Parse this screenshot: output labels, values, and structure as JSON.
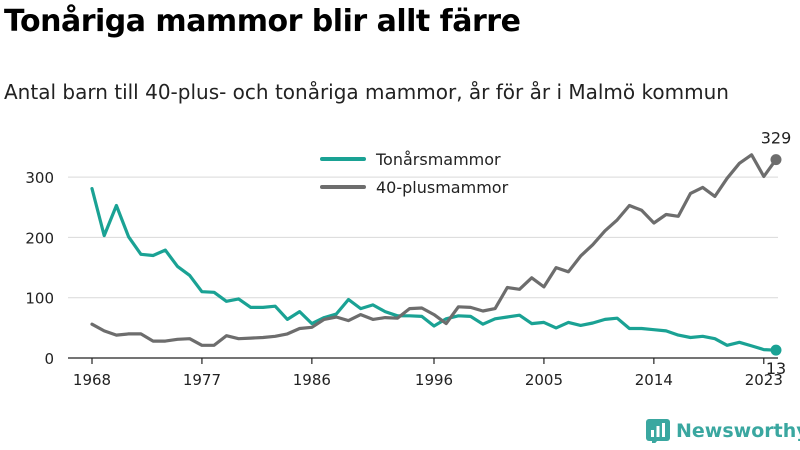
{
  "title": "Tonåriga mammor blir allt färre",
  "subtitle": "Antal barn till 40-plus- och tonåriga mammor, år för år i Malmö kommun",
  "brand": {
    "name": "Newsworthy",
    "color": "#3aa7a0",
    "icon": "newsworthy-logo-icon"
  },
  "chart_data": {
    "type": "line",
    "x": [
      1968,
      1969,
      1970,
      1971,
      1972,
      1973,
      1974,
      1975,
      1976,
      1977,
      1978,
      1979,
      1980,
      1981,
      1982,
      1983,
      1984,
      1985,
      1986,
      1987,
      1988,
      1989,
      1990,
      1991,
      1992,
      1993,
      1994,
      1995,
      1996,
      1997,
      1998,
      1999,
      2000,
      2001,
      2002,
      2003,
      2004,
      2005,
      2006,
      2007,
      2008,
      2009,
      2010,
      2011,
      2012,
      2013,
      2014,
      2015,
      2016,
      2017,
      2018,
      2019,
      2020,
      2021,
      2022,
      2023,
      2024
    ],
    "series": [
      {
        "name": "Tonårsmammor",
        "color": "#1aa294",
        "values": [
          281,
          203,
          253,
          201,
          172,
          170,
          179,
          152,
          137,
          110,
          109,
          94,
          98,
          84,
          84,
          86,
          64,
          77,
          57,
          67,
          73,
          97,
          82,
          88,
          77,
          70,
          70,
          69,
          53,
          65,
          70,
          69,
          56,
          65,
          68,
          71,
          57,
          59,
          50,
          59,
          54,
          58,
          64,
          66,
          49,
          49,
          47,
          45,
          38,
          34,
          36,
          32,
          21,
          26,
          20,
          14,
          13
        ]
      },
      {
        "name": "40-plusmammor",
        "color": "#6d6d6d",
        "values": [
          56,
          45,
          38,
          40,
          40,
          28,
          28,
          31,
          32,
          21,
          21,
          37,
          32,
          33,
          34,
          36,
          40,
          49,
          51,
          64,
          68,
          62,
          72,
          64,
          67,
          66,
          82,
          83,
          72,
          57,
          85,
          84,
          78,
          82,
          117,
          114,
          133,
          118,
          150,
          143,
          169,
          188,
          211,
          229,
          253,
          245,
          224,
          238,
          235,
          273,
          283,
          268,
          298,
          323,
          337,
          301,
          329
        ]
      }
    ],
    "xticks": [
      1968,
      1977,
      1986,
      1996,
      2005,
      2014,
      2023
    ],
    "yticks": [
      0,
      100,
      200,
      300
    ],
    "xlim": [
      1968,
      2024
    ],
    "ylim": [
      0,
      345
    ],
    "grid": true,
    "legend_position": "top-center",
    "end_labels": {
      "40-plusmammor": "329",
      "Tonårsmammor": "13"
    },
    "xlabel": "",
    "ylabel": ""
  }
}
